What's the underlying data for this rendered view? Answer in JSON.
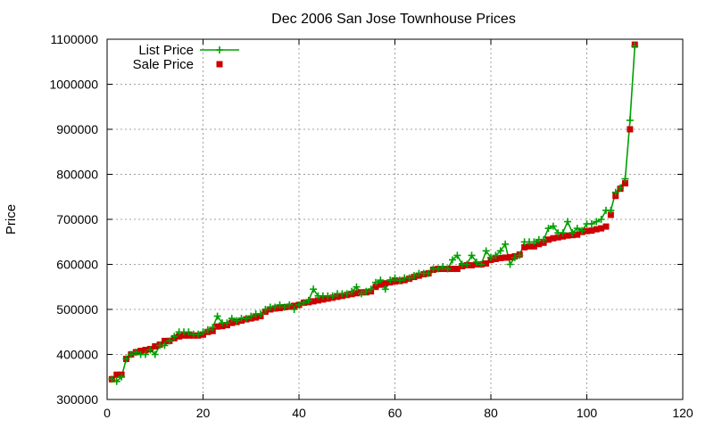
{
  "chart_data": {
    "type": "line",
    "title": "Dec 2006 San Jose Townhouse Prices",
    "xlabel": "",
    "ylabel": "Price",
    "xlim": [
      0,
      120
    ],
    "ylim": [
      300000,
      1100000
    ],
    "xticks": [
      0,
      20,
      40,
      60,
      80,
      100,
      120
    ],
    "yticks": [
      300000,
      400000,
      500000,
      600000,
      700000,
      800000,
      900000,
      1000000,
      1100000
    ],
    "grid": true,
    "legend": "top-left",
    "colors": {
      "list": "#00a000",
      "sale": "#cc0000"
    },
    "series": [
      {
        "name": "List Price",
        "style": "line-plus",
        "x": [
          1,
          2,
          3,
          4,
          5,
          6,
          7,
          8,
          9,
          10,
          11,
          12,
          13,
          14,
          15,
          16,
          17,
          18,
          19,
          20,
          21,
          22,
          23,
          24,
          25,
          26,
          27,
          28,
          29,
          30,
          31,
          32,
          33,
          34,
          35,
          36,
          37,
          38,
          39,
          40,
          41,
          42,
          43,
          44,
          45,
          46,
          47,
          48,
          49,
          50,
          51,
          52,
          53,
          54,
          55,
          56,
          57,
          58,
          59,
          60,
          61,
          62,
          63,
          64,
          65,
          66,
          67,
          68,
          69,
          70,
          71,
          72,
          73,
          74,
          75,
          76,
          77,
          78,
          79,
          80,
          81,
          82,
          83,
          84,
          85,
          86,
          87,
          88,
          89,
          90,
          91,
          92,
          93,
          94,
          95,
          96,
          97,
          98,
          99,
          100,
          101,
          102,
          103,
          104,
          105,
          106,
          107,
          108,
          109,
          110
        ],
        "values": [
          345000,
          340000,
          350000,
          390000,
          400000,
          405000,
          400000,
          400000,
          410000,
          400000,
          420000,
          420000,
          430000,
          440000,
          450000,
          450000,
          450000,
          445000,
          445000,
          450000,
          455000,
          460000,
          485000,
          470000,
          470000,
          480000,
          475000,
          480000,
          480000,
          485000,
          490000,
          490000,
          500000,
          505000,
          505000,
          510000,
          505000,
          510000,
          500000,
          510000,
          515000,
          520000,
          545000,
          530000,
          530000,
          530000,
          530000,
          535000,
          535000,
          535000,
          540000,
          550000,
          535000,
          540000,
          545000,
          560000,
          565000,
          545000,
          565000,
          570000,
          565000,
          570000,
          570000,
          575000,
          580000,
          580000,
          580000,
          590000,
          590000,
          595000,
          590000,
          610000,
          620000,
          600000,
          600000,
          620000,
          605000,
          600000,
          630000,
          615000,
          620000,
          630000,
          645000,
          600000,
          615000,
          620000,
          650000,
          650000,
          650000,
          655000,
          655000,
          680000,
          685000,
          670000,
          670000,
          695000,
          670000,
          680000,
          675000,
          690000,
          690000,
          695000,
          700000,
          720000,
          720000,
          760000,
          770000,
          790000,
          920000,
          1085000
        ]
      },
      {
        "name": "Sale Price",
        "style": "square",
        "x": [
          1,
          2,
          3,
          4,
          5,
          6,
          7,
          8,
          9,
          10,
          11,
          12,
          13,
          14,
          15,
          16,
          17,
          18,
          19,
          20,
          21,
          22,
          23,
          24,
          25,
          26,
          27,
          28,
          29,
          30,
          31,
          32,
          33,
          34,
          35,
          36,
          37,
          38,
          39,
          40,
          41,
          42,
          43,
          44,
          45,
          46,
          47,
          48,
          49,
          50,
          51,
          52,
          53,
          54,
          55,
          56,
          57,
          58,
          59,
          60,
          61,
          62,
          63,
          64,
          65,
          66,
          67,
          68,
          69,
          70,
          71,
          72,
          73,
          74,
          75,
          76,
          77,
          78,
          79,
          80,
          81,
          82,
          83,
          84,
          85,
          86,
          87,
          88,
          89,
          90,
          91,
          92,
          93,
          94,
          95,
          96,
          97,
          98,
          99,
          100,
          101,
          102,
          103,
          104,
          105,
          106,
          107,
          108,
          109,
          110
        ],
        "values": [
          345000,
          355000,
          355000,
          390000,
          400000,
          405000,
          408000,
          410000,
          412000,
          418000,
          422000,
          430000,
          430000,
          436000,
          440000,
          442000,
          442000,
          442000,
          442000,
          444000,
          450000,
          452000,
          462000,
          463000,
          465000,
          470000,
          472000,
          475000,
          478000,
          480000,
          482000,
          485000,
          495000,
          500000,
          502000,
          503000,
          505000,
          506000,
          508000,
          510000,
          515000,
          516000,
          518000,
          520000,
          522000,
          524000,
          526000,
          528000,
          530000,
          532000,
          534000,
          536000,
          538000,
          538000,
          540000,
          550000,
          555000,
          558000,
          560000,
          562000,
          563000,
          565000,
          568000,
          572000,
          575000,
          578000,
          580000,
          588000,
          590000,
          590000,
          590000,
          590000,
          590000,
          596000,
          598000,
          598000,
          600000,
          600000,
          602000,
          610000,
          612000,
          614000,
          615000,
          616000,
          618000,
          622000,
          638000,
          640000,
          640000,
          645000,
          648000,
          655000,
          658000,
          660000,
          662000,
          664000,
          665000,
          666000,
          672000,
          674000,
          675000,
          678000,
          680000,
          684000,
          710000,
          752000,
          768000,
          780000,
          900000,
          1088000
        ]
      }
    ]
  }
}
